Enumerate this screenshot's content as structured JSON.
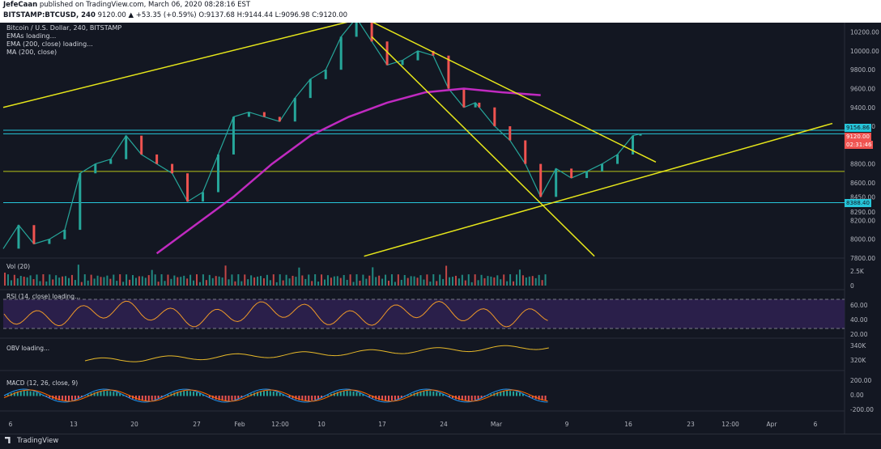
{
  "header": {
    "author": "JefeCaan",
    "published": "published on TradingView.com, March 06, 2020 08:28:16 EST",
    "symbol": "BITSTAMP:BTCUSD, 240",
    "ohlc": "9120.00 ▲ +53.35 (+0.59%) O:9137.68 H:9144.44 L:9096.98 C:9120.00"
  },
  "legend": {
    "title": "Bitcoin / U.S. Dollar, 240, BITSTAMP",
    "lines": [
      "EMAs loading...",
      "EMA (200, close) loading...",
      "MA (200, close)"
    ]
  },
  "panes": {
    "vol": "Vol (20)",
    "rsi": "RSI (14, close) loading...",
    "obv": "OBV loading...",
    "macd": "MACD (12, 26, close, 9)"
  },
  "price_tags": {
    "resistance": "9156.86",
    "last": "9120.00",
    "countdown": "02:31:46",
    "support": "8388.40"
  },
  "footer": {
    "logo": "TradingView"
  },
  "colors": {
    "bg": "#131722",
    "up": "#26a69a",
    "down": "#ef5350",
    "trend": "#e6e61a",
    "ma": "#c02ac0",
    "hline_cyan": "#26c6da",
    "hline_yellow": "#b8c41a",
    "rsi": "#f09a28",
    "obv": "#e6b829"
  },
  "chart_data": {
    "type": "line",
    "title": "Bitcoin / U.S. Dollar, 240, BITSTAMP",
    "xlabel": "",
    "ylabel": "",
    "x_ticks": [
      "6",
      "13",
      "20",
      "27",
      "Feb",
      "12:00",
      "10",
      "17",
      "24",
      "Mar",
      "9",
      "16",
      "23",
      "12:00",
      "Apr",
      "6"
    ],
    "ylim": [
      7800,
      10300
    ],
    "y_ticks": [
      "10200.00",
      "10000.00",
      "9800.00",
      "9600.00",
      "9400.00",
      "9200.00",
      "8800.00",
      "8600.00",
      "8450.00",
      "8290.00",
      "8200.00",
      "8000.00",
      "7800.00"
    ],
    "price_path_x": [
      0,
      2,
      4,
      6,
      8,
      10,
      12,
      14,
      16,
      18,
      20,
      22,
      24,
      26,
      28,
      30,
      32,
      34,
      36,
      38,
      40,
      42,
      44,
      46,
      48,
      50,
      52,
      54,
      56,
      58,
      60,
      61.5
    ],
    "price_path_y": [
      7900,
      8150,
      7950,
      8000,
      8100,
      8700,
      8800,
      8850,
      9100,
      8900,
      8800,
      8700,
      8400,
      8500,
      8900,
      9300,
      9350,
      9300,
      9250,
      9500,
      9700,
      9800,
      10150,
      10350,
      10100,
      9850,
      9900,
      10000,
      9950,
      9600,
      9400,
      9450
    ],
    "price_path_cont": [
      [
        62,
        9400
      ],
      [
        64,
        9200
      ],
      [
        66,
        9050
      ],
      [
        68,
        8800
      ],
      [
        70,
        8450
      ],
      [
        72,
        8750
      ],
      [
        74,
        8650
      ],
      [
        76,
        8720
      ],
      [
        78,
        8800
      ],
      [
        80,
        8900
      ],
      [
        82,
        9100
      ],
      [
        83,
        9120
      ]
    ],
    "ma_200": [
      [
        20,
        7850
      ],
      [
        25,
        8150
      ],
      [
        30,
        8450
      ],
      [
        35,
        8800
      ],
      [
        40,
        9100
      ],
      [
        45,
        9300
      ],
      [
        50,
        9450
      ],
      [
        55,
        9560
      ],
      [
        60,
        9600
      ],
      [
        65,
        9560
      ],
      [
        70,
        9530
      ]
    ],
    "horizontal_levels": [
      9156.86,
      9120.0,
      8720.0,
      8388.4
    ],
    "trendlines": [
      {
        "from": [
          0,
          9400
        ],
        "to": [
          47,
          10350
        ]
      },
      {
        "from": [
          47,
          10350
        ],
        "to": [
          85,
          8820
        ]
      },
      {
        "from": [
          48,
          10150
        ],
        "to": [
          77,
          7820
        ]
      },
      {
        "from": [
          47,
          7820
        ],
        "to": [
          108,
          9230
        ]
      }
    ],
    "rsi_levels": [
      70,
      30
    ],
    "rsi_ticks": [
      "60.00",
      "40.00",
      "20.00"
    ],
    "obv_ticks": [
      "340K",
      "320K"
    ],
    "macd_ticks": [
      "200.00",
      "0.00",
      "-200.00"
    ],
    "vol_ticks": [
      "2.5K",
      "0"
    ]
  }
}
